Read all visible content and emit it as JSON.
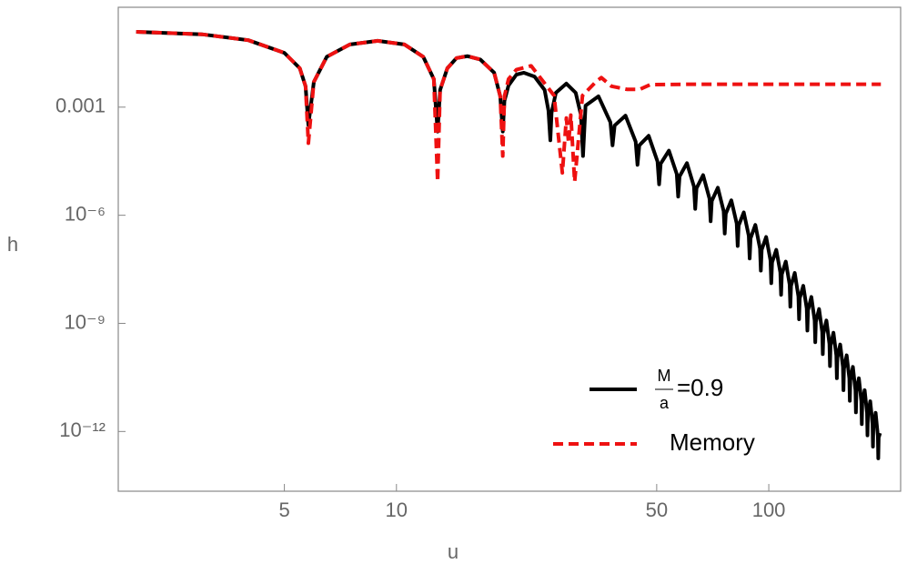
{
  "chart_data": {
    "type": "line",
    "xscale": "log",
    "yscale": "log",
    "xlabel": "u",
    "ylabel": "h",
    "xlim": [
      1.79,
      226
    ],
    "ylim": [
      2.2e-14,
      0.59
    ],
    "xticks": [
      5,
      10,
      50,
      100
    ],
    "yticks": [
      {
        "value": 0.001,
        "label": "0.001"
      },
      {
        "value": 1e-06,
        "label": "10⁻⁶"
      },
      {
        "value": 1e-09,
        "label": "10⁻⁹"
      },
      {
        "value": 1e-12,
        "label": "10⁻¹²"
      }
    ],
    "legend": "lower right",
    "series": [
      {
        "name": "M/a=0.9",
        "color": "#000000",
        "dash": false,
        "x": [
          2,
          3,
          4,
          5,
          5.5,
          5.7,
          5.8,
          6.0,
          6.5,
          7.5,
          8.9,
          10.5,
          11.8,
          12.6,
          12.9,
          13.1,
          13.7,
          14.5,
          15.5,
          16.8,
          18.3,
          19.0,
          19.3,
          19.5,
          20,
          21,
          22,
          23.5,
          25,
          25.6,
          25.9,
          26.1,
          26.8,
          28.6,
          30.3,
          31.3,
          31.7,
          32.2,
          34.875,
          37.55,
          38.05,
          38.55,
          41.225,
          43.9,
          44.4,
          44.9,
          47.575,
          50.25,
          50.75,
          51.25,
          53.925,
          56.6,
          57.1,
          57.6,
          60.275,
          62.95,
          63.45,
          63.95,
          66.625,
          69.3,
          69.8,
          70.3,
          72.975,
          75.65,
          76.15,
          76.65,
          79.325,
          82.0,
          82.5,
          83.0,
          85.675,
          88.35,
          88.85,
          89.35,
          92.025,
          94.7,
          95.2,
          95.7,
          98.375,
          101.05,
          101.55,
          102.05,
          104.725,
          107.4,
          107.9,
          108.4,
          111.075,
          113.75,
          114.25,
          114.75,
          117.425,
          120.1,
          120.6,
          121.1,
          123.775,
          126.45,
          126.95,
          127.45,
          130.125,
          132.8,
          133.3,
          133.8,
          136.475,
          139.15,
          139.65,
          140.15,
          142.825,
          145.5,
          146.0,
          146.5,
          149.175,
          151.85,
          152.35,
          152.85,
          155.525,
          158.2,
          158.7,
          159.2,
          161.875,
          164.55,
          165.05,
          165.55,
          168.225,
          170.9,
          171.4,
          171.9,
          174.575,
          177.25,
          177.75,
          178.25,
          180.925,
          183.6,
          184.1,
          184.6,
          187.275,
          189.95,
          190.45,
          190.95,
          193.625,
          196.3,
          196.8,
          197.3,
          199
        ],
        "values": [
          0.123,
          0.105,
          0.072,
          0.032,
          0.012,
          0.0038,
          0.00032,
          0.005,
          0.025,
          0.055,
          0.069,
          0.055,
          0.025,
          0.006,
          0.00021,
          0.003,
          0.012,
          0.023,
          0.026,
          0.021,
          0.009,
          0.002,
          0.00021,
          0.0015,
          0.004,
          0.008,
          0.009,
          0.007,
          0.003,
          0.0008,
          0.00012,
          0.0007,
          0.0025,
          0.0045,
          0.0025,
          0.0006,
          4.4e-05,
          0.0011,
          0.002,
          0.00038,
          8.7e-05,
          0.00031,
          0.00058,
          0.00011,
          2.5e-05,
          8.7e-05,
          0.00016,
          3.1e-05,
          7.2e-06,
          2.7e-05,
          6.2e-05,
          1.4e-05,
          3.3e-06,
          1.2e-05,
          2.8e-05,
          6.3e-06,
          1.5e-06,
          5.6e-06,
          1.3e-05,
          2.9e-06,
          6.8e-07,
          2.5e-06,
          5.8e-06,
          1.3e-06,
          3.1e-07,
          1.1e-06,
          2.6e-06,
          5.9e-07,
          1.4e-07,
          5.2e-07,
          1.2e-06,
          2.7e-07,
          6.3e-08,
          2.3e-07,
          5.4e-07,
          1.2e-07,
          2.9e-08,
          1.1e-07,
          2.5e-07,
          5.6e-08,
          1.3e-08,
          4.9e-08,
          1.1e-07,
          2.6e-08,
          6.2e-09,
          2.3e-08,
          5.2e-08,
          1.2e-08,
          2.9e-09,
          1.1e-08,
          2.5e-08,
          5.6e-09,
          1.3e-09,
          5e-09,
          1.1e-08,
          2.6e-09,
          6.3e-10,
          2.3e-09,
          5.4e-09,
          1.2e-09,
          3e-10,
          1.1e-09,
          2.5e-09,
          5.8e-10,
          1.4e-10,
          5.1e-10,
          1.2e-09,
          2.7e-10,
          6.5e-11,
          2.4e-10,
          5.5e-10,
          1.3e-10,
          3e-11,
          1.1e-10,
          2.6e-10,
          6.2e-11,
          1.4e-11,
          5.5e-11,
          1.3e-10,
          3e-11,
          7.1e-12,
          2.6e-11,
          6.2e-11,
          1.4e-11,
          3.4e-12,
          1.3e-11,
          3e-11,
          6.9e-12,
          1.6e-12,
          6.2e-12,
          1.4e-11,
          3.3e-12,
          7.8e-13,
          3e-12,
          6.9e-12,
          1.6e-12,
          3.8e-13,
          1.4e-12,
          3.3e-12,
          7.6e-13,
          1.8e-13,
          6.8e-13,
          9e-13
        ]
      },
      {
        "name": "Memory",
        "color": "#ee1111",
        "dash": true,
        "x": [
          2,
          3,
          4,
          5,
          5.5,
          5.7,
          5.8,
          6.0,
          6.5,
          7.5,
          8.9,
          10.5,
          11.8,
          12.6,
          12.9,
          13.1,
          13.7,
          14.5,
          15.5,
          16.8,
          18.3,
          19.0,
          19.3,
          19.5,
          20,
          21,
          23,
          26.5,
          27.9,
          28.6,
          29.0,
          29.4,
          30.1,
          31.6,
          34.3,
          35.5,
          37.8,
          41.7,
          45,
          48,
          60,
          100,
          200
        ],
        "values": [
          0.123,
          0.105,
          0.072,
          0.032,
          0.012,
          0.0038,
          0.0001,
          0.005,
          0.025,
          0.055,
          0.069,
          0.055,
          0.025,
          0.006,
          8.5e-06,
          0.003,
          0.012,
          0.023,
          0.026,
          0.021,
          0.009,
          0.002,
          4.4e-05,
          0.002,
          0.006,
          0.011,
          0.014,
          0.0021,
          1.5e-05,
          0.0005,
          0.0001,
          0.0006,
          8.5e-06,
          0.0021,
          0.005,
          0.0066,
          0.0038,
          0.0031,
          0.0031,
          0.0042,
          0.0043,
          0.0043,
          0.0043
        ]
      }
    ]
  }
}
